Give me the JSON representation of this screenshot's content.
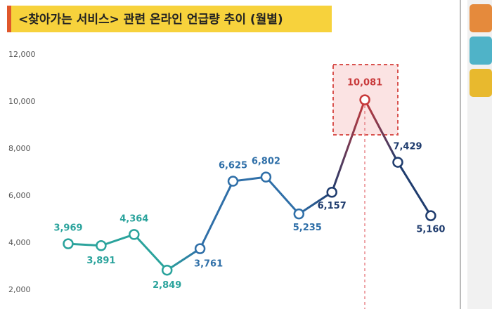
{
  "chart_data": {
    "type": "line",
    "title": "<찾아가는 서비스> 관련 온라인 언급량 추이 (월별)",
    "categories": [
      null,
      null,
      null,
      null,
      null,
      null,
      null,
      null,
      null,
      null,
      null,
      null
    ],
    "values": [
      3969,
      3891,
      4364,
      2849,
      3761,
      6625,
      6802,
      5235,
      6157,
      10081,
      7429,
      5160
    ],
    "value_labels": [
      "3,969",
      "3,891",
      "4,364",
      "2,849",
      "3,761",
      "6,625",
      "6,802",
      "5,235",
      "6,157",
      "10,081",
      "7,429",
      "5,160"
    ],
    "point_colors": [
      "#2aa39c",
      "#2aa39c",
      "#2aa39c",
      "#2aa39c",
      "#2f6fa8",
      "#2f6fa8",
      "#2f6fa8",
      "#2f6fa8",
      "#1f3c6e",
      "#c8393a",
      "#1f3c6e",
      "#1f3c6e"
    ],
    "ylim": [
      1200,
      12500
    ],
    "yticks": [
      {
        "value": 2000,
        "label": "2,000"
      },
      {
        "value": 4000,
        "label": "4,000"
      },
      {
        "value": 6000,
        "label": "6,000"
      },
      {
        "value": 8000,
        "label": "8,000"
      },
      {
        "value": 10000,
        "label": "10,000"
      },
      {
        "value": 12000,
        "label": "12,000"
      }
    ],
    "grid": false
  }
}
